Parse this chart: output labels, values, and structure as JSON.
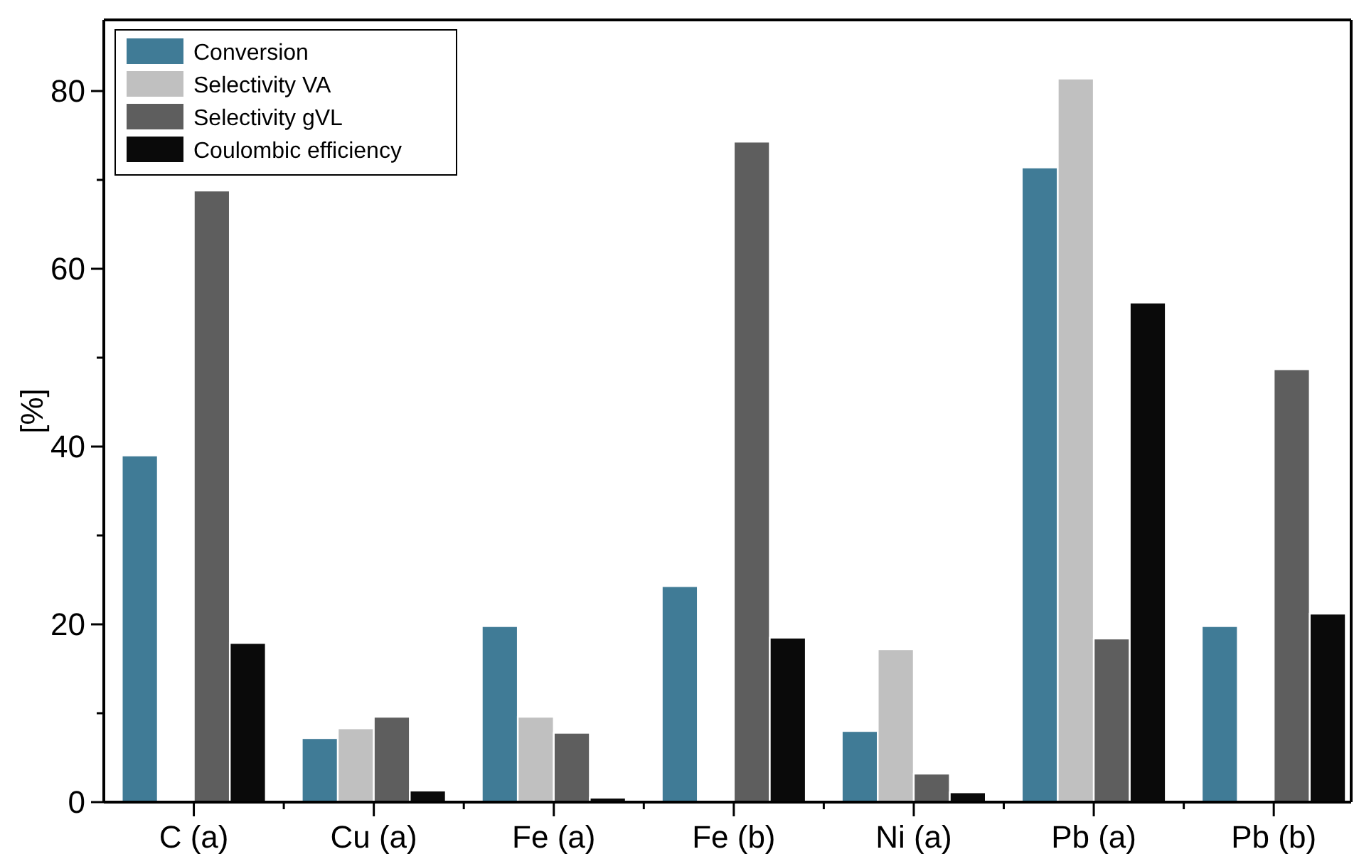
{
  "chart_data": {
    "type": "bar",
    "ylabel": "[%]",
    "categories": [
      "C (a)",
      "Cu (a)",
      "Fe (a)",
      "Fe (b)",
      "Ni (a)",
      "Pb (a)",
      "Pb (b)"
    ],
    "series": [
      {
        "name": "Conversion",
        "color": "#407b96",
        "values": [
          39.0,
          7.2,
          19.8,
          24.3,
          8.0,
          71.4,
          19.8
        ]
      },
      {
        "name": "Selectivity VA",
        "color": "#c0c0c0",
        "values": [
          null,
          8.3,
          9.6,
          null,
          17.2,
          81.4,
          null
        ]
      },
      {
        "name": "Selectivity gVL",
        "color": "#5e5e5e",
        "values": [
          68.8,
          9.6,
          7.8,
          74.3,
          3.2,
          18.4,
          48.7
        ]
      },
      {
        "name": "Coulombic efficiency",
        "color": "#0a0a0a",
        "values": [
          17.9,
          1.3,
          0.5,
          18.5,
          1.1,
          56.2,
          21.2
        ]
      }
    ],
    "ylim": [
      0,
      88
    ],
    "yticks": [
      0,
      {
        "value": 10,
        "label": null
      },
      20,
      {
        "value": 30,
        "label": null
      },
      40,
      {
        "value": 50,
        "label": null
      },
      60,
      {
        "value": 70,
        "label": null
      },
      80
    ],
    "legend": "top left",
    "grid": false
  }
}
